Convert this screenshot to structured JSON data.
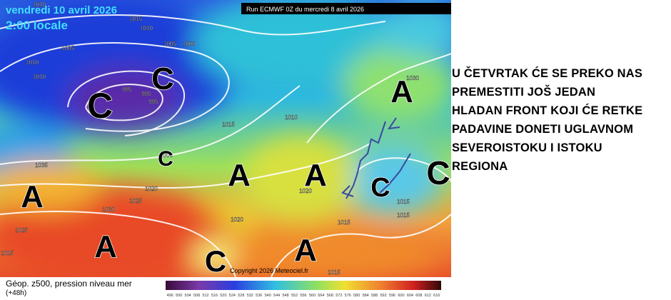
{
  "header": {
    "date": "vendredi 10 avril 2026",
    "time": "2:00 locale",
    "run": "Run ECMWF 0Z du mercredi 8 avril 2026"
  },
  "pressure_centers": [
    "C",
    "C",
    "C",
    "A",
    "A",
    "A",
    "A",
    "A",
    "C",
    "A",
    "C",
    "C"
  ],
  "isobar_labels": [
    "1010",
    "1015",
    "1010",
    "1005",
    "1005",
    "1000",
    "1010",
    "1010",
    "985",
    "990",
    "995",
    "1015",
    "1010",
    "1000",
    "1035",
    "1020",
    "1025",
    "1030",
    "1025",
    "1015",
    "1020",
    "1015",
    "1015",
    "1015",
    "1030",
    "1020",
    "1015"
  ],
  "copyright": "Copyright 2026 Meteociel.fr",
  "note": {
    "lines": [
      "U ČETVRTAK ĆE SE PREKO NAS",
      "PREMESTITI JOŠ JEDAN",
      "HLADAN FRONT KOJI ĆE RETKE",
      "PADAVINE DONETI UGLAVNOM",
      "SEVEROISTOKU I ISTOKU",
      "REGIONA"
    ]
  },
  "footer": {
    "label": "Géop. z500, pression niveau mer",
    "step": "(+48h)",
    "scale": [
      "496",
      "500",
      "504",
      "508",
      "512",
      "516",
      "520",
      "524",
      "528",
      "532",
      "536",
      "540",
      "544",
      "548",
      "552",
      "556",
      "560",
      "564",
      "568",
      "572",
      "576",
      "580",
      "584",
      "588",
      "592",
      "596",
      "600",
      "604",
      "608",
      "612",
      "616"
    ]
  }
}
